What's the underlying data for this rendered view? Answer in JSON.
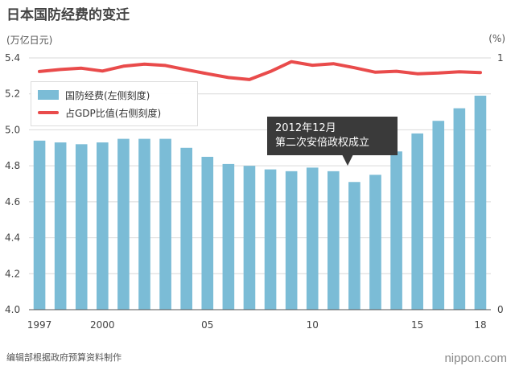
{
  "title": "日本国防经费的变迁",
  "unit_left": "(万亿日元)",
  "unit_right": "(%)",
  "legend": {
    "budget": "国防经费(左侧刻度)",
    "gdp": "占GDP比值(右侧刻度)"
  },
  "annotation": {
    "line1": "2012年12月",
    "line2": "第二次安倍政权成立"
  },
  "source": "编辑部根据政府预算资料制作",
  "brand": "nippon.com",
  "colors": {
    "bar": "#7bbcd6",
    "line": "#e94b4b"
  },
  "chart_data": {
    "type": "bar",
    "x": [
      1997,
      1998,
      1999,
      2000,
      2001,
      2002,
      2003,
      2004,
      2005,
      2006,
      2007,
      2008,
      2009,
      2010,
      2011,
      2012,
      2013,
      2014,
      2015,
      2016,
      2017,
      2018
    ],
    "x_tick_labels": [
      {
        "x": 1997,
        "label": "1997"
      },
      {
        "x": 2000,
        "label": "2000"
      },
      {
        "x": 2005,
        "label": "05"
      },
      {
        "x": 2010,
        "label": "10"
      },
      {
        "x": 2015,
        "label": "15"
      },
      {
        "x": 2018,
        "label": "18"
      }
    ],
    "series": [
      {
        "name": "国防经费(左侧刻度)",
        "type": "bar",
        "axis": "left",
        "values": [
          4.94,
          4.93,
          4.92,
          4.93,
          4.95,
          4.95,
          4.95,
          4.9,
          4.85,
          4.81,
          4.8,
          4.78,
          4.77,
          4.79,
          4.77,
          4.71,
          4.75,
          4.88,
          4.98,
          5.05,
          5.12,
          5.19
        ]
      },
      {
        "name": "占GDP比值(右侧刻度)",
        "type": "line",
        "axis": "right",
        "values": [
          0.946,
          0.954,
          0.959,
          0.948,
          0.967,
          0.975,
          0.97,
          0.953,
          0.937,
          0.922,
          0.914,
          0.946,
          0.985,
          0.971,
          0.977,
          0.961,
          0.943,
          0.947,
          0.937,
          0.94,
          0.945,
          0.942
        ]
      }
    ],
    "y_left": {
      "ylim": [
        4.0,
        5.4
      ],
      "ticks": [
        "4.0",
        "4.2",
        "4.4",
        "4.6",
        "4.8",
        "5.0",
        "5.2",
        "5.4"
      ]
    },
    "y_right": {
      "ylim": [
        0,
        1
      ],
      "ticks": [
        "0",
        "1"
      ]
    },
    "grid": true
  }
}
